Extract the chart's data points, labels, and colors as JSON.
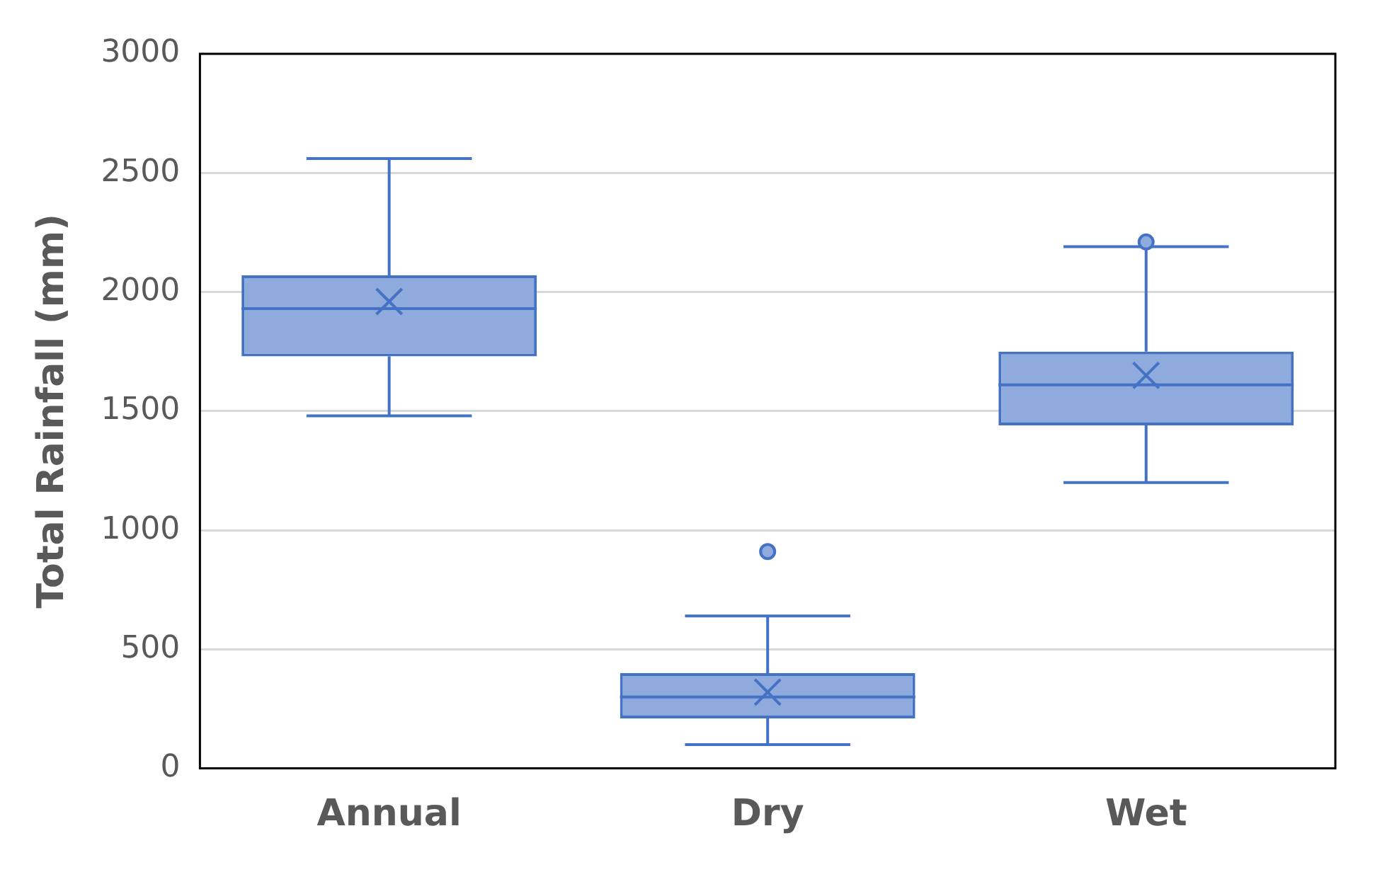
{
  "chart_data": {
    "type": "box",
    "ylabel": "Total Rainfall (mm)",
    "categories": [
      "Annual",
      "Dry",
      "Wet"
    ],
    "color": "#4472c4",
    "boxes": [
      {
        "low": 1480,
        "q1": 1730,
        "median": 1930,
        "q3": 2070,
        "high": 2560,
        "mean": 1960
      },
      {
        "low": 100,
        "q1": 210,
        "median": 300,
        "q3": 400,
        "high": 640,
        "mean": 320,
        "outliers": [
          910
        ]
      },
      {
        "low": 1200,
        "q1": 1440,
        "median": 1610,
        "q3": 1750,
        "high": 2190,
        "mean": 1650,
        "outliers": [
          2210
        ]
      }
    ],
    "ylim": [
      0,
      3000
    ],
    "yticks": [
      0,
      500,
      1000,
      1500,
      2000,
      2500,
      3000
    ],
    "grid": "y",
    "legend": false
  }
}
